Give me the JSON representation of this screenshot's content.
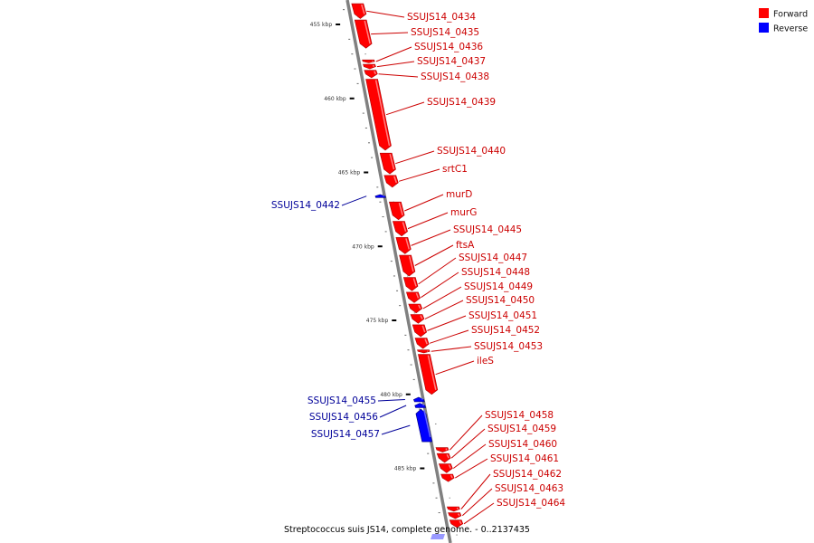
{
  "legend": {
    "forward": {
      "label": "Forward",
      "color": "#ff0000"
    },
    "reverse": {
      "label": "Reverse",
      "color": "#0000ff"
    }
  },
  "caption": "Streptococcus suis JS14, complete genome. - 0..2137435",
  "colors": {
    "backbone": "#808080",
    "forward_gene": "#ff0000",
    "forward_label": "#cc0000",
    "reverse_gene": "#0000ff",
    "reverse_label": "#000099",
    "tick_mark": "#000000"
  },
  "ticks": [
    {
      "kbp": 455,
      "label": "455 kbp"
    },
    {
      "kbp": 460,
      "label": "460 kbp"
    },
    {
      "kbp": 465,
      "label": "465 kbp"
    },
    {
      "kbp": 470,
      "label": "470 kbp"
    },
    {
      "kbp": 475,
      "label": "475 kbp"
    },
    {
      "kbp": 480,
      "label": "480 kbp"
    },
    {
      "kbp": 485,
      "label": "485 kbp"
    }
  ],
  "genes": [
    {
      "name": "SSUJS14_0434",
      "strand": "forward",
      "start_kbp": 453.6,
      "end_kbp": 454.6
    },
    {
      "name": "SSUJS14_0435",
      "strand": "forward",
      "start_kbp": 454.7,
      "end_kbp": 456.6
    },
    {
      "name": "SSUJS14_0436",
      "strand": "forward",
      "start_kbp": 457.4,
      "end_kbp": 457.6
    },
    {
      "name": "SSUJS14_0437",
      "strand": "forward",
      "start_kbp": 457.7,
      "end_kbp": 458.0
    },
    {
      "name": "SSUJS14_0438",
      "strand": "forward",
      "start_kbp": 458.1,
      "end_kbp": 458.6
    },
    {
      "name": "SSUJS14_0439",
      "strand": "forward",
      "start_kbp": 458.7,
      "end_kbp": 463.5
    },
    {
      "name": "SSUJS14_0440",
      "strand": "forward",
      "start_kbp": 463.7,
      "end_kbp": 465.1
    },
    {
      "name": "srtC1",
      "strand": "forward",
      "start_kbp": 465.2,
      "end_kbp": 466.0
    },
    {
      "name": "SSUJS14_0442",
      "strand": "reverse",
      "start_kbp": 466.5,
      "end_kbp": 466.7
    },
    {
      "name": "murD",
      "strand": "forward",
      "start_kbp": 467.0,
      "end_kbp": 468.2
    },
    {
      "name": "murG",
      "strand": "forward",
      "start_kbp": 468.3,
      "end_kbp": 469.3
    },
    {
      "name": "SSUJS14_0445",
      "strand": "forward",
      "start_kbp": 469.4,
      "end_kbp": 470.5
    },
    {
      "name": "ftsA",
      "strand": "forward",
      "start_kbp": 470.6,
      "end_kbp": 472.0
    },
    {
      "name": "SSUJS14_0447",
      "strand": "forward",
      "start_kbp": 472.1,
      "end_kbp": 473.0
    },
    {
      "name": "SSUJS14_0448",
      "strand": "forward",
      "start_kbp": 473.1,
      "end_kbp": 473.8
    },
    {
      "name": "SSUJS14_0449",
      "strand": "forward",
      "start_kbp": 473.9,
      "end_kbp": 474.5
    },
    {
      "name": "SSUJS14_0450",
      "strand": "forward",
      "start_kbp": 474.6,
      "end_kbp": 475.2
    },
    {
      "name": "SSUJS14_0451",
      "strand": "forward",
      "start_kbp": 475.3,
      "end_kbp": 476.1
    },
    {
      "name": "SSUJS14_0452",
      "strand": "forward",
      "start_kbp": 476.2,
      "end_kbp": 476.9
    },
    {
      "name": "SSUJS14_0453",
      "strand": "forward",
      "start_kbp": 477.0,
      "end_kbp": 477.2
    },
    {
      "name": "ileS",
      "strand": "forward",
      "start_kbp": 477.3,
      "end_kbp": 480.0
    },
    {
      "name": "SSUJS14_0455",
      "strand": "reverse",
      "start_kbp": 480.2,
      "end_kbp": 480.5
    },
    {
      "name": "SSUJS14_0456",
      "strand": "reverse",
      "start_kbp": 480.6,
      "end_kbp": 480.9
    },
    {
      "name": "SSUJS14_0457",
      "strand": "reverse",
      "start_kbp": 481.0,
      "end_kbp": 483.2
    },
    {
      "name": "SSUJS14_0458",
      "strand": "forward",
      "start_kbp": 483.6,
      "end_kbp": 483.9
    },
    {
      "name": "SSUJS14_0459",
      "strand": "forward",
      "start_kbp": 484.0,
      "end_kbp": 484.6
    },
    {
      "name": "SSUJS14_0460",
      "strand": "forward",
      "start_kbp": 484.7,
      "end_kbp": 485.3
    },
    {
      "name": "SSUJS14_0461",
      "strand": "forward",
      "start_kbp": 485.4,
      "end_kbp": 485.9
    },
    {
      "name": "SSUJS14_0462",
      "strand": "forward",
      "start_kbp": 487.6,
      "end_kbp": 487.9
    },
    {
      "name": "SSUJS14_0463",
      "strand": "forward",
      "start_kbp": 488.0,
      "end_kbp": 488.4
    },
    {
      "name": "SSUJS14_0464",
      "strand": "forward",
      "start_kbp": 488.5,
      "end_kbp": 489.0
    }
  ]
}
